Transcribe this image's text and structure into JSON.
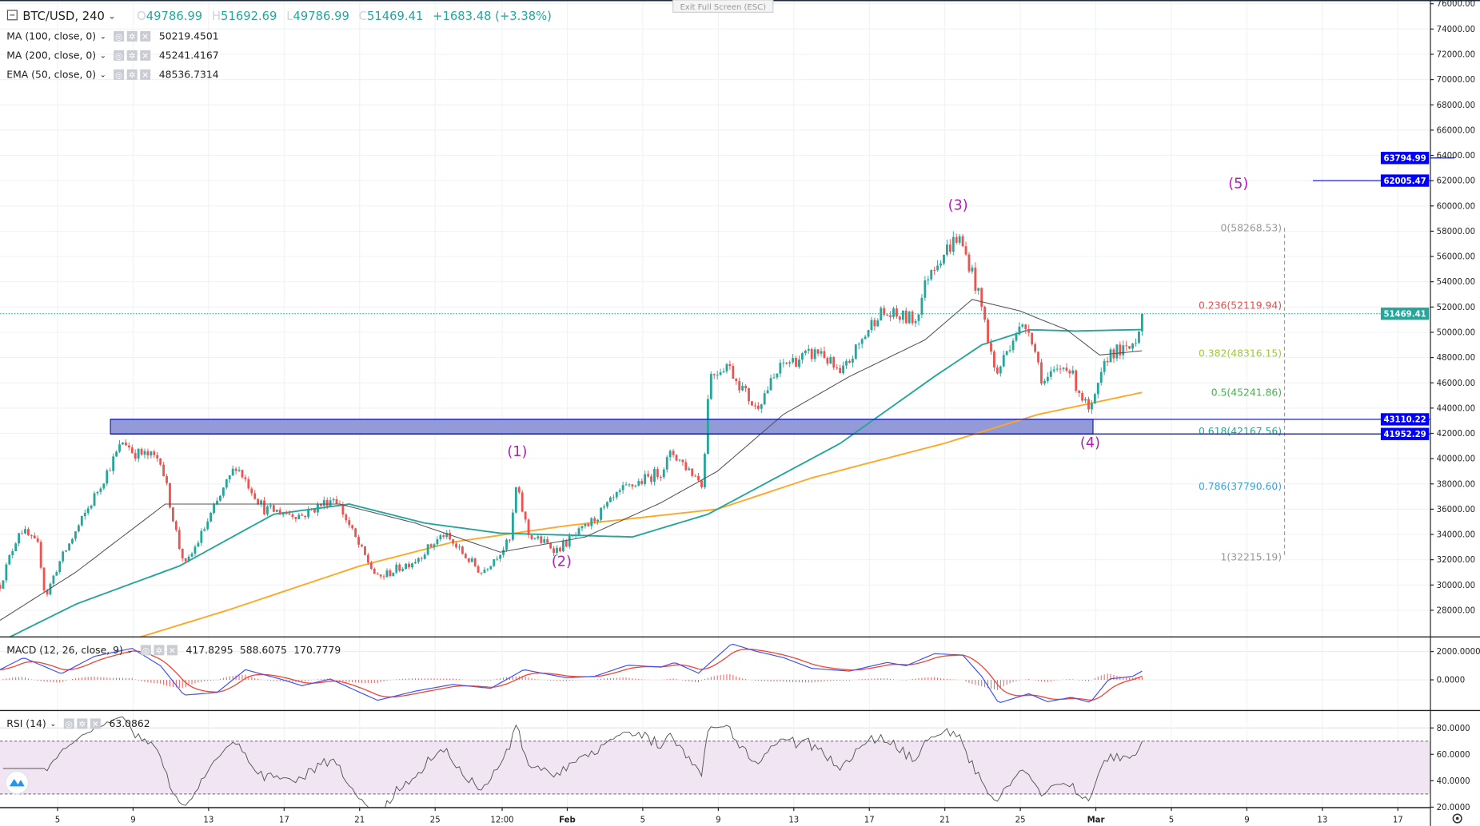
{
  "header": {
    "symbol": "BTC/USD, 240",
    "o_label": "O",
    "o_value": "49786.99",
    "h_label": "H",
    "h_value": "51692.69",
    "l_label": "L",
    "l_value": "49786.99",
    "c_label": "C",
    "c_value": "51469.41",
    "change": "+1683.48 (+3.38%)",
    "exit_fullscreen": "Exit Full Screen (ESC)"
  },
  "indicators": [
    {
      "label": "MA (100, close, 0)",
      "value": "50219.4501",
      "color": "#26a69a"
    },
    {
      "label": "MA (200, close, 0)",
      "value": "45241.4167",
      "color": "#ff9800"
    },
    {
      "label": "EMA (50, close, 0)",
      "value": "48536.7314",
      "color": "#222222"
    }
  ],
  "macd": {
    "label": "MACD (12, 26, close, 9)",
    "hist": "417.8295",
    "macd": "588.6075",
    "signal": "170.7779",
    "axis": [
      "2000.0000",
      "0.0000"
    ]
  },
  "rsi": {
    "label": "RSI (14)",
    "value": "63.0862",
    "axis": [
      "80.0000",
      "60.0000",
      "40.0000",
      "20.0000"
    ]
  },
  "colors": {
    "up": "#26a69a",
    "down": "#ef5350",
    "zone_line": "#0000ff",
    "wave": "#b41fb4",
    "current": "#26a69a"
  },
  "price_axis": [
    "76000.00",
    "74000.00",
    "72000.00",
    "70000.00",
    "68000.00",
    "66000.00",
    "64000.00",
    "62000.00",
    "60000.00",
    "58000.00",
    "56000.00",
    "54000.00",
    "52000.00",
    "50000.00",
    "48000.00",
    "46000.00",
    "44000.00",
    "42000.00",
    "40000.00",
    "38000.00",
    "36000.00",
    "34000.00",
    "32000.00",
    "30000.00",
    "28000.00"
  ],
  "current_price": "51469.41",
  "levels": [
    {
      "label": "63794.99",
      "value": 63794.99,
      "from_day": 78.0
    },
    {
      "label": "62005.47",
      "value": 62005.47,
      "from_day": 70.5
    },
    {
      "label": "43110.22",
      "value": 43110.22,
      "from_day": 6.8
    },
    {
      "label": "41952.29",
      "value": 41952.29,
      "from_day": 6.8
    }
  ],
  "zone": {
    "top": 43110.22,
    "bottom": 41952.29,
    "from_day": 6.8,
    "to_day": 58.85
  },
  "fib": [
    {
      "label": "0(58268.53)",
      "value": 58268.53,
      "color": "#999999"
    },
    {
      "label": "0.236(52119.94)",
      "value": 52119.94,
      "color": "#e05050"
    },
    {
      "label": "0.382(48316.15)",
      "value": 48316.15,
      "color": "#a0c83c"
    },
    {
      "label": "0.5(45241.86)",
      "value": 45241.86,
      "color": "#4caf50"
    },
    {
      "label": "0.618(42167.56)",
      "value": 42167.56,
      "color": "#2aa88a"
    },
    {
      "label": "0.786(37790.60)",
      "value": 37790.6,
      "color": "#3fa0d9"
    },
    {
      "label": "1(32215.19)",
      "value": 32215.19,
      "color": "#999999"
    }
  ],
  "waves": [
    {
      "label": "(1)",
      "day": 28.35,
      "price": 40200
    },
    {
      "label": "(2)",
      "day": 30.7,
      "price": 31500
    },
    {
      "label": "(3)",
      "day": 51.7,
      "price": 59700
    },
    {
      "label": "(4)",
      "day": 58.7,
      "price": 40900
    },
    {
      "label": "(5)",
      "day": 66.55,
      "price": 61400
    }
  ],
  "time_axis": [
    {
      "label": "5",
      "day": 4
    },
    {
      "label": "9",
      "day": 8
    },
    {
      "label": "13",
      "day": 12
    },
    {
      "label": "17",
      "day": 16
    },
    {
      "label": "21",
      "day": 20
    },
    {
      "label": "25",
      "day": 24
    },
    {
      "label": "12:00",
      "day": 27.55
    },
    {
      "label": "Feb",
      "day": 31,
      "bold": true
    },
    {
      "label": "5",
      "day": 35
    },
    {
      "label": "9",
      "day": 39
    },
    {
      "label": "13",
      "day": 43
    },
    {
      "label": "17",
      "day": 47
    },
    {
      "label": "21",
      "day": 51
    },
    {
      "label": "25",
      "day": 55
    },
    {
      "label": "Mar",
      "day": 59,
      "bold": true
    },
    {
      "label": "5",
      "day": 63
    },
    {
      "label": "9",
      "day": 67
    },
    {
      "label": "13",
      "day": 71
    },
    {
      "label": "17",
      "day": 75
    }
  ],
  "chart_data": {
    "type": "candlestick",
    "title": "BTC/USD, 240",
    "price_path": [
      [
        0.95,
        30000
      ],
      [
        2.0,
        34500
      ],
      [
        3.0,
        33000
      ],
      [
        3.35,
        29000
      ],
      [
        4.0,
        31500
      ],
      [
        5.95,
        37000
      ],
      [
        7.5,
        41500
      ],
      [
        8.0,
        40500
      ],
      [
        9.45,
        40000
      ],
      [
        10.45,
        33000
      ],
      [
        10.8,
        31500
      ],
      [
        11.95,
        35000
      ],
      [
        13.45,
        39500
      ],
      [
        14.95,
        36000
      ],
      [
        16.95,
        35500
      ],
      [
        18.7,
        37000
      ],
      [
        20.0,
        33000
      ],
      [
        20.95,
        30500
      ],
      [
        22.95,
        32000
      ],
      [
        24.45,
        34000
      ],
      [
        26.45,
        31000
      ],
      [
        27.95,
        33500
      ],
      [
        28.3,
        37800
      ],
      [
        28.95,
        34000
      ],
      [
        30.45,
        32800
      ],
      [
        31.95,
        34500
      ],
      [
        33.95,
        37500
      ],
      [
        35.95,
        39000
      ],
      [
        36.55,
        40500
      ],
      [
        38.2,
        38000
      ],
      [
        38.5,
        46500
      ],
      [
        39.45,
        47500
      ],
      [
        40.95,
        44000
      ],
      [
        42.45,
        47500
      ],
      [
        44.45,
        48500
      ],
      [
        45.45,
        46500
      ],
      [
        47.45,
        51500
      ],
      [
        49.45,
        51000
      ],
      [
        50.2,
        55000
      ],
      [
        51.7,
        57600
      ],
      [
        52.4,
        55000
      ],
      [
        52.95,
        52000
      ],
      [
        53.7,
        46500
      ],
      [
        54.7,
        50000
      ],
      [
        55.45,
        50500
      ],
      [
        56.2,
        46000
      ],
      [
        57.45,
        47500
      ],
      [
        58.7,
        43500
      ],
      [
        59.7,
        48500
      ],
      [
        60.7,
        48500
      ],
      [
        61.2,
        49800
      ],
      [
        61.45,
        51469
      ]
    ],
    "ma100": [
      [
        0.95,
        25500
      ],
      [
        5.0,
        28500
      ],
      [
        10.45,
        31500
      ],
      [
        15.45,
        35600
      ],
      [
        19.45,
        36400
      ],
      [
        23.45,
        34900
      ],
      [
        27.45,
        34100
      ],
      [
        34.45,
        33800
      ],
      [
        38.45,
        35600
      ],
      [
        45.45,
        41200
      ],
      [
        50.45,
        46500
      ],
      [
        52.95,
        49000
      ],
      [
        55.45,
        50200
      ],
      [
        57.95,
        50100
      ],
      [
        61.45,
        50220
      ]
    ],
    "ma200": [
      [
        8.2,
        25800
      ],
      [
        13,
        28000
      ],
      [
        20,
        31500
      ],
      [
        24.95,
        33400
      ],
      [
        31,
        34700
      ],
      [
        38.95,
        36000
      ],
      [
        44,
        38500
      ],
      [
        50.95,
        41200
      ],
      [
        55.95,
        43500
      ],
      [
        61.45,
        45241
      ]
    ],
    "ema50": [
      [
        0.95,
        27200
      ],
      [
        4.95,
        31000
      ],
      [
        9.7,
        36400
      ],
      [
        14.95,
        36400
      ],
      [
        18.95,
        36400
      ],
      [
        22.95,
        34900
      ],
      [
        27.45,
        32600
      ],
      [
        31.95,
        33800
      ],
      [
        35.95,
        36500
      ],
      [
        38.95,
        39000
      ],
      [
        42.45,
        43500
      ],
      [
        45.95,
        46500
      ],
      [
        49.95,
        49400
      ],
      [
        52.45,
        52600
      ],
      [
        54.95,
        51700
      ],
      [
        57.45,
        50200
      ],
      [
        59.2,
        48200
      ],
      [
        61.45,
        48536
      ]
    ],
    "macd_line": [
      [
        0.95,
        720
      ],
      [
        2.2,
        1570
      ],
      [
        4.2,
        430
      ],
      [
        5.95,
        1660
      ],
      [
        7.95,
        2230
      ],
      [
        9.45,
        1000
      ],
      [
        10.7,
        -1080
      ],
      [
        12.45,
        -890
      ],
      [
        13.95,
        720
      ],
      [
        15.95,
        0
      ],
      [
        16.95,
        -415
      ],
      [
        18.45,
        60
      ],
      [
        20.95,
        -1450
      ],
      [
        22.95,
        -800
      ],
      [
        24.95,
        -320
      ],
      [
        26.95,
        -600
      ],
      [
        28.7,
        720
      ],
      [
        30.95,
        150
      ],
      [
        32.45,
        250
      ],
      [
        34.2,
        1040
      ],
      [
        35.95,
        900
      ],
      [
        36.7,
        1230
      ],
      [
        37.95,
        470
      ],
      [
        39.7,
        2550
      ],
      [
        40.95,
        2040
      ],
      [
        42.45,
        1570
      ],
      [
        43.95,
        810
      ],
      [
        45.95,
        620
      ],
      [
        47.95,
        1230
      ],
      [
        48.95,
        1000
      ],
      [
        50.45,
        1850
      ],
      [
        51.95,
        1750
      ],
      [
        52.95,
        250
      ],
      [
        53.85,
        -1640
      ],
      [
        55.45,
        -980
      ],
      [
        56.45,
        -1550
      ],
      [
        57.7,
        -1230
      ],
      [
        58.7,
        -1600
      ],
      [
        59.7,
        60
      ],
      [
        60.95,
        245
      ],
      [
        61.45,
        620
      ]
    ],
    "ylim": [
      28000,
      76000
    ]
  }
}
